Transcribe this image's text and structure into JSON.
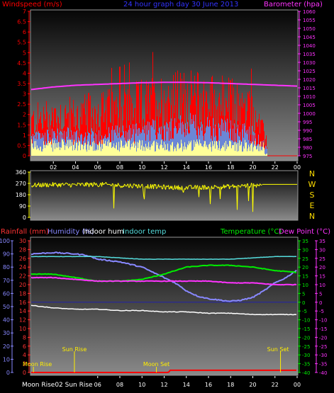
{
  "header": {
    "left": "Windspeed (m/s)",
    "center": "24 hour graph day  30 June 2013",
    "right": "Barometer (hpa)"
  },
  "wind_dir_labels": [
    "N",
    "W",
    "S",
    "E",
    "N"
  ],
  "bottom_header": {
    "rain": "Rainfall (mm)",
    "humidity": "Humidity (%)",
    "indoor_hum": "Indoor hum",
    "indoor_temp": "Indoor temp",
    "temperature": "Temperature (°C)",
    "dewpoint": "Dew Point (°C)"
  },
  "bottom_axis_text": "Moon Rise02 Sun Rise",
  "colors": {
    "wind_gust": "#ff0000",
    "wind_avg": "#6b86d6",
    "wind_dir_bar": "#ffff99",
    "barometer": "#ff33ff",
    "wind_direction": "#ffff00",
    "rain": "#ff0000",
    "humidity": "#8888ff",
    "indoor_hum": "#ffffff",
    "indoor_temp": "#55dddd",
    "temperature": "#00ee00",
    "dewpoint": "#ff33ff",
    "rain_axis": "#ff3333",
    "dew_axis": "#ff33ff",
    "temp_axis": "#00ee00"
  },
  "chart_data": [
    {
      "type": "line",
      "name": "wind_and_pressure",
      "x_ticks": [
        "02",
        "04",
        "06",
        "08",
        "10",
        "12",
        "14",
        "16",
        "18",
        "20",
        "22",
        "00"
      ],
      "y_left_ticks": [
        "0",
        "0.5",
        "1",
        "1.5",
        "2",
        "2.5",
        "3",
        "3.5",
        "4",
        "4.5",
        "5",
        "5.5",
        "6",
        "6.5",
        "7"
      ],
      "ylim_left": [
        0,
        7
      ],
      "y_right_ticks": [
        "975",
        "980",
        "985",
        "990",
        "995",
        "1000",
        "1005",
        "1010",
        "1015",
        "1020",
        "1025",
        "1030",
        "1035",
        "1040",
        "1045",
        "1050",
        "1055",
        "1060"
      ],
      "ylim_right": [
        975,
        1060
      ],
      "series": [
        {
          "name": "Windspeed",
          "hours": [
            0,
            2,
            4,
            6,
            8,
            10,
            12,
            14,
            16,
            18,
            20,
            21,
            22,
            24
          ],
          "gust": [
            2.0,
            2.4,
            2.3,
            2.6,
            2.7,
            3.0,
            3.3,
            3.4,
            3.3,
            3.1,
            2.6,
            1.2,
            0.2,
            0.0
          ],
          "avg": [
            0.9,
            1.1,
            1.0,
            1.0,
            1.1,
            1.2,
            1.4,
            1.5,
            1.4,
            1.3,
            1.1,
            0.5,
            0.1,
            0.0
          ]
        },
        {
          "name": "Barometer",
          "hours": [
            0,
            2,
            4,
            6,
            8,
            10,
            12,
            14,
            16,
            18,
            20,
            22,
            24
          ],
          "values": [
            1014,
            1015.5,
            1016.5,
            1017,
            1017.5,
            1018,
            1018.2,
            1018.2,
            1018,
            1017.5,
            1017,
            1016.5,
            1016
          ]
        }
      ]
    },
    {
      "type": "scatter",
      "name": "wind_direction",
      "y_ticks": [
        "0",
        "90",
        "180",
        "270",
        "360"
      ],
      "ylim": [
        0,
        360
      ],
      "series": [
        {
          "name": "Wind direction",
          "hours": [
            0,
            2,
            4,
            6,
            8,
            10,
            12,
            14,
            16,
            18,
            20,
            21,
            22,
            24
          ],
          "values": [
            255,
            260,
            258,
            262,
            255,
            250,
            240,
            235,
            240,
            245,
            255,
            262,
            262,
            262
          ]
        }
      ]
    },
    {
      "type": "line",
      "name": "temperature_humidity",
      "x_ticks": [
        "06",
        "08",
        "10",
        "12",
        "14",
        "16",
        "18",
        "20",
        "22",
        "00"
      ],
      "y_left_ticks": [
        "0",
        "10",
        "20",
        "30",
        "40",
        "50",
        "60",
        "70",
        "80",
        "90",
        "100"
      ],
      "ylim_left": [
        0,
        100
      ],
      "y_rain_ticks": [
        "0",
        "2",
        "4",
        "6",
        "8",
        "10",
        "12",
        "14",
        "16",
        "18",
        "20",
        "22",
        "24",
        "26",
        "28",
        "30"
      ],
      "y_temp_ticks": [
        "35",
        "30",
        "25",
        "20",
        "15",
        "10",
        "5",
        "0",
        "-5",
        "-10",
        "-15",
        "-20",
        "-25",
        "-30",
        "-35",
        "-40"
      ],
      "ylim_temp": [
        -40,
        35
      ],
      "series": [
        {
          "name": "Humidity (%)",
          "hours": [
            0,
            2,
            4,
            5,
            6,
            8,
            9,
            10,
            11,
            12,
            13,
            14,
            15,
            16,
            17,
            18,
            19,
            20,
            21,
            22,
            23,
            24
          ],
          "values": [
            90,
            91,
            90,
            89,
            86,
            84,
            82,
            80,
            76,
            72,
            68,
            62,
            58,
            56,
            55,
            54,
            55,
            57,
            62,
            68,
            72,
            78
          ]
        },
        {
          "name": "Indoor hum",
          "hours": [
            0,
            1,
            2,
            4,
            6,
            8,
            10,
            12,
            14,
            16,
            18,
            20,
            22,
            24
          ],
          "values": [
            51,
            50,
            49,
            48,
            48,
            47,
            47,
            46,
            46,
            45,
            45,
            44,
            44,
            44
          ]
        },
        {
          "name": "Indoor temp",
          "hours": [
            0,
            2,
            4,
            6,
            8,
            10,
            12,
            14,
            16,
            18,
            20,
            22,
            24
          ],
          "values": [
            88,
            88,
            88,
            88,
            87,
            86,
            86,
            86,
            86,
            86,
            87,
            88,
            88
          ]
        },
        {
          "name": "Temperature (°C)",
          "hours": [
            0,
            2,
            4,
            6,
            8,
            10,
            12,
            13,
            14,
            16,
            18,
            20,
            22,
            24
          ],
          "values": [
            16,
            16,
            14,
            12,
            12,
            13,
            16,
            18,
            20,
            21,
            21,
            20,
            18,
            17
          ]
        },
        {
          "name": "Dew Point (°C)",
          "hours": [
            0,
            2,
            4,
            6,
            8,
            10,
            12,
            14,
            16,
            18,
            20,
            22,
            24
          ],
          "values": [
            14,
            14,
            13,
            12,
            12,
            12,
            12,
            12,
            12,
            11,
            11,
            10,
            10
          ]
        },
        {
          "name": "Rainfall (mm)",
          "hours": [
            0,
            12.4,
            12.5,
            24
          ],
          "values": [
            0,
            0,
            0.5,
            0.5
          ]
        }
      ],
      "events": [
        {
          "label": "Moon Rise",
          "hour": 0.2
        },
        {
          "label": "Sun Rise",
          "hour": 3.9
        },
        {
          "label": "Moon Set",
          "hour": 11.3
        },
        {
          "label": "Sun Set",
          "hour": 22.5
        }
      ]
    }
  ]
}
